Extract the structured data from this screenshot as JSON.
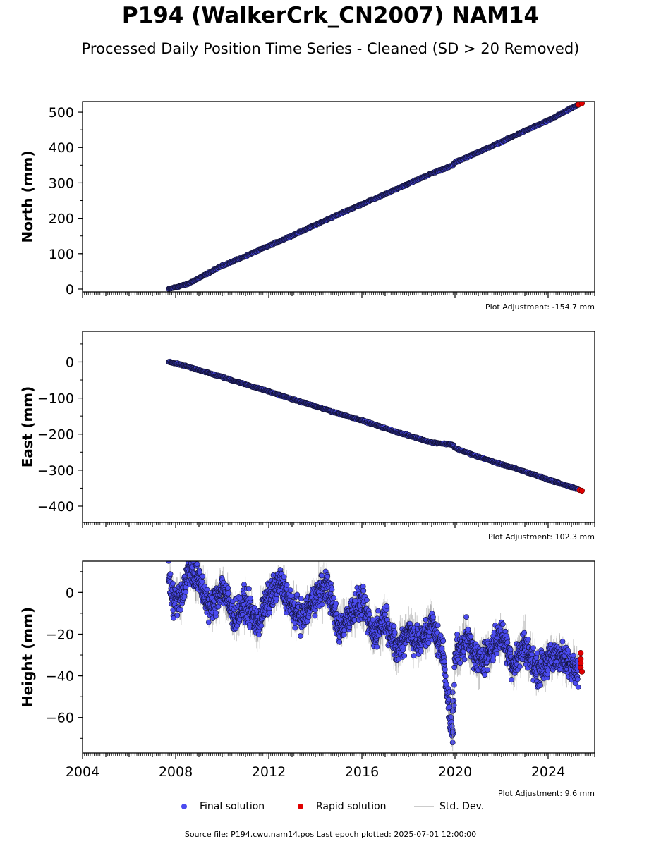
{
  "title": "P194 (WalkerCrk_CN2007) NAM14",
  "subtitle": "Processed Daily Position Time Series - Cleaned (SD > 20 Removed)",
  "legend": {
    "final": "Final solution",
    "rapid": "Rapid solution",
    "std": "Std. Dev."
  },
  "source": "Source file: P194.cwu.nam14.pos  Last epoch plotted: 2025-07-01 12:00:00",
  "colors": {
    "final": "#4b4bf0",
    "rapid": "#e00000",
    "std": "#888888",
    "edge": "#111133"
  },
  "chart_data": [
    {
      "type": "scatter",
      "name": "north",
      "ylabel": "North (mm)",
      "adjustment": "Plot Adjustment: -154.7 mm",
      "xlim": [
        2004.0,
        2026.0
      ],
      "ylim": [
        -8,
        530
      ],
      "yticks": [
        0,
        100,
        200,
        300,
        400,
        500
      ],
      "ytick_labels": [
        "0",
        "100",
        "200",
        "300",
        "400",
        "500"
      ],
      "xticks": [
        2004,
        2008,
        2012,
        2016,
        2020,
        2024
      ],
      "xtick_labels": [],
      "final_points": [
        [
          2007.7,
          0
        ],
        [
          2008.5,
          14
        ],
        [
          2009.0,
          31
        ],
        [
          2010.0,
          66
        ],
        [
          2011.0,
          93
        ],
        [
          2012.0,
          122
        ],
        [
          2013.0,
          151
        ],
        [
          2014.0,
          181
        ],
        [
          2015.0,
          211
        ],
        [
          2016.0,
          240
        ],
        [
          2017.0,
          268
        ],
        [
          2018.0,
          298
        ],
        [
          2019.0,
          327
        ],
        [
          2019.9,
          349
        ],
        [
          2020.0,
          358
        ],
        [
          2021.0,
          387
        ],
        [
          2022.0,
          416
        ],
        [
          2023.0,
          447
        ],
        [
          2024.0,
          476
        ],
        [
          2025.0,
          511
        ],
        [
          2025.3,
          521
        ]
      ],
      "rapid_points": [
        [
          2025.3,
          521
        ],
        [
          2025.45,
          525
        ]
      ]
    },
    {
      "type": "scatter",
      "name": "east",
      "ylabel": "East (mm)",
      "adjustment": "Plot Adjustment: 102.3 mm",
      "xlim": [
        2004.0,
        2026.0
      ],
      "ylim": [
        -445,
        85
      ],
      "yticks": [
        0,
        -100,
        -200,
        -300,
        -400
      ],
      "ytick_labels": [
        "0",
        "−100",
        "−200",
        "−300",
        "−400"
      ],
      "xticks": [
        2004,
        2008,
        2012,
        2016,
        2020,
        2024
      ],
      "xtick_labels": [],
      "final_points": [
        [
          2007.7,
          0
        ],
        [
          2008.0,
          -4
        ],
        [
          2009.0,
          -22
        ],
        [
          2010.0,
          -42
        ],
        [
          2011.0,
          -62
        ],
        [
          2012.0,
          -82
        ],
        [
          2013.0,
          -103
        ],
        [
          2014.0,
          -123
        ],
        [
          2015.0,
          -143
        ],
        [
          2016.0,
          -162
        ],
        [
          2017.0,
          -184
        ],
        [
          2018.0,
          -204
        ],
        [
          2019.0,
          -223
        ],
        [
          2019.9,
          -229
        ],
        [
          2020.0,
          -239
        ],
        [
          2021.0,
          -263
        ],
        [
          2022.0,
          -284
        ],
        [
          2023.0,
          -304
        ],
        [
          2024.0,
          -326
        ],
        [
          2025.0,
          -347
        ],
        [
          2025.3,
          -354
        ]
      ],
      "rapid_points": [
        [
          2025.35,
          -355
        ],
        [
          2025.45,
          -357
        ]
      ]
    },
    {
      "type": "scatter",
      "name": "height",
      "ylabel": "Height (mm)",
      "adjustment": "Plot Adjustment: 9.6 mm",
      "xlim": [
        2004.0,
        2026.0
      ],
      "ylim": [
        -77,
        15
      ],
      "yticks": [
        0,
        -20,
        -40,
        -60
      ],
      "ytick_labels": [
        "0",
        "−20",
        "−40",
        "−60"
      ],
      "xticks": [
        2004,
        2008,
        2012,
        2016,
        2020,
        2024
      ],
      "xtick_labels": [
        "2004",
        "2008",
        "2012",
        "2016",
        "2020",
        "2024"
      ],
      "final_points": [
        [
          2007.7,
          10
        ],
        [
          2007.9,
          -5
        ],
        [
          2008.3,
          0
        ],
        [
          2008.6,
          12
        ],
        [
          2009.0,
          5
        ],
        [
          2009.5,
          -8
        ],
        [
          2010.0,
          3
        ],
        [
          2010.5,
          -12
        ],
        [
          2011.0,
          -5
        ],
        [
          2011.5,
          -15
        ],
        [
          2012.0,
          -3
        ],
        [
          2012.5,
          5
        ],
        [
          2013.0,
          -8
        ],
        [
          2013.5,
          -12
        ],
        [
          2014.0,
          -2
        ],
        [
          2014.5,
          4
        ],
        [
          2015.0,
          -18
        ],
        [
          2015.5,
          -10
        ],
        [
          2016.0,
          -5
        ],
        [
          2016.5,
          -20
        ],
        [
          2017.0,
          -12
        ],
        [
          2017.5,
          -28
        ],
        [
          2018.0,
          -18
        ],
        [
          2018.5,
          -25
        ],
        [
          2019.0,
          -15
        ],
        [
          2019.5,
          -30
        ],
        [
          2019.9,
          -72
        ],
        [
          2020.0,
          -30
        ],
        [
          2020.5,
          -22
        ],
        [
          2021.0,
          -33
        ],
        [
          2021.5,
          -28
        ],
        [
          2022.0,
          -20
        ],
        [
          2022.5,
          -35
        ],
        [
          2023.0,
          -25
        ],
        [
          2023.5,
          -38
        ],
        [
          2024.0,
          -33
        ],
        [
          2024.5,
          -30
        ],
        [
          2025.0,
          -36
        ]
      ],
      "rapid_points": [
        [
          2025.4,
          -29
        ],
        [
          2025.4,
          -32
        ],
        [
          2025.4,
          -34
        ],
        [
          2025.4,
          -36
        ],
        [
          2025.45,
          -38
        ]
      ]
    }
  ]
}
